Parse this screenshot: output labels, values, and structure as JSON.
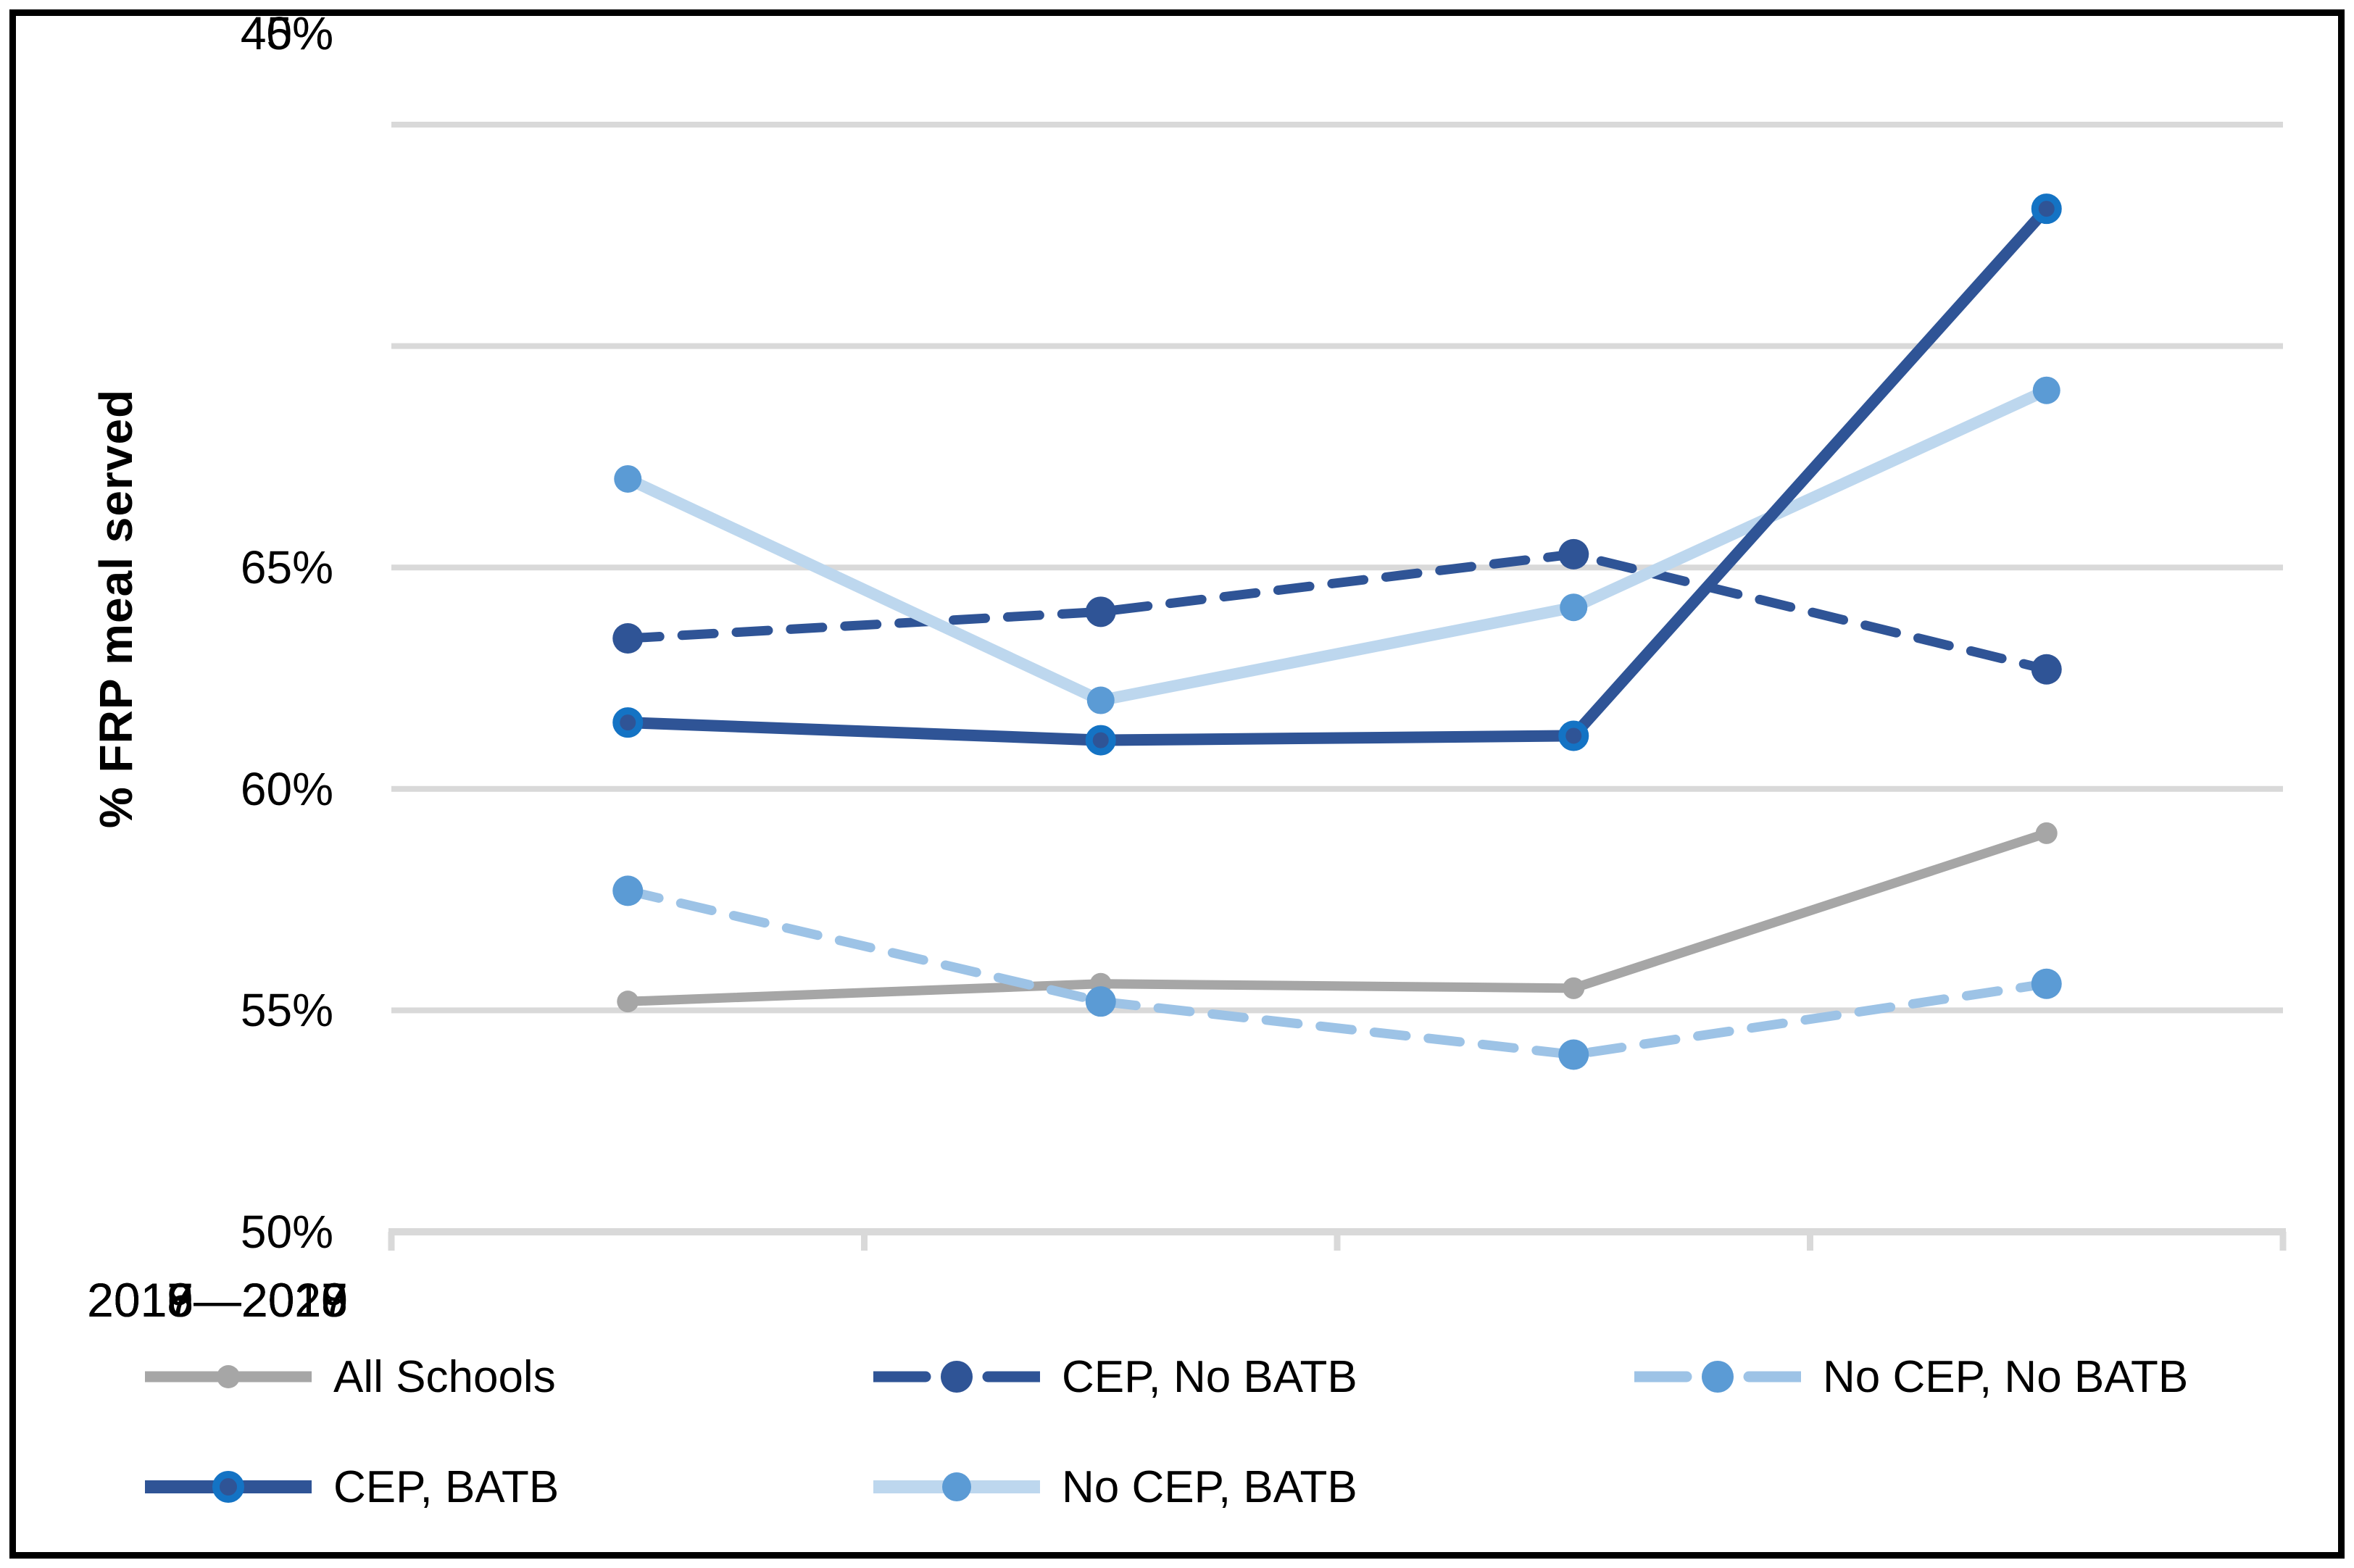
{
  "chart_data": {
    "type": "line",
    "title": "",
    "xlabel": "",
    "ylabel": "% FRP meal served",
    "categories": [
      "2016—2017",
      "2017—2018",
      "2018—2019",
      "2019—2020"
    ],
    "series": [
      {
        "name": "All Schools",
        "values": [
          45.2,
          45.6,
          45.5,
          49.0
        ],
        "line_color": "#A6A6A6",
        "marker_color": "#A6A6A6",
        "line_style": "solid"
      },
      {
        "name": "CEP, No BATB",
        "values": [
          53.4,
          54.0,
          55.3,
          52.7
        ],
        "line_color": "#2F5496",
        "marker_color": "#2F5496",
        "line_style": "dashed"
      },
      {
        "name": "No CEP, No BATB",
        "values": [
          47.7,
          45.2,
          44.0,
          45.6
        ],
        "line_color": "#9DC3E6",
        "marker_color": "#5B9BD5",
        "line_style": "dashed"
      },
      {
        "name": "CEP, BATB",
        "values": [
          51.5,
          51.1,
          51.2,
          63.1
        ],
        "line_color": "#2F5496",
        "marker_color": "#2F5496",
        "marker_ring_color": "#1473C4",
        "line_style": "solid"
      },
      {
        "name": "No CEP, BATB",
        "values": [
          57.0,
          52.0,
          54.1,
          59.0
        ],
        "line_color": "#BDD7EE",
        "marker_color": "#5B9BD5",
        "line_style": "solid"
      }
    ],
    "ylim": [
      40,
      65
    ],
    "ytick_step": 5,
    "y_tick_labels": [
      "65%",
      "60%",
      "55%",
      "50%",
      "45%",
      "40%"
    ],
    "grid": true,
    "gridline_color": "#D9D9D9",
    "axis_color": "#D9D9D9",
    "legend_position": "bottom"
  }
}
